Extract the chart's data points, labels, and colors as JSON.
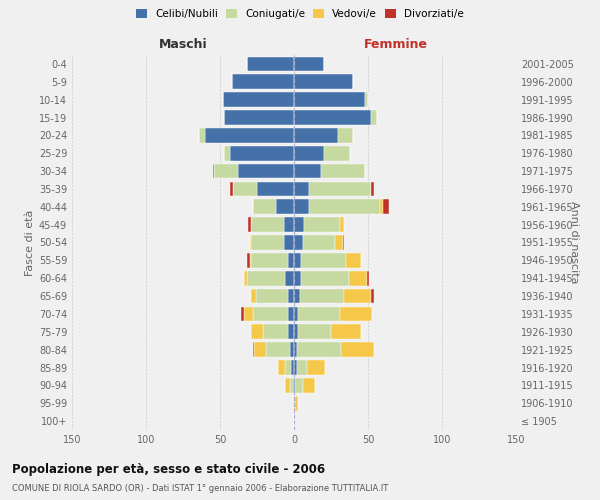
{
  "age_groups": [
    "100+",
    "95-99",
    "90-94",
    "85-89",
    "80-84",
    "75-79",
    "70-74",
    "65-69",
    "60-64",
    "55-59",
    "50-54",
    "45-49",
    "40-44",
    "35-39",
    "30-34",
    "25-29",
    "20-24",
    "15-19",
    "10-14",
    "5-9",
    "0-4"
  ],
  "year_labels": [
    "≤ 1905",
    "1906-1910",
    "1911-1915",
    "1916-1920",
    "1921-1925",
    "1926-1930",
    "1931-1935",
    "1936-1940",
    "1941-1945",
    "1946-1950",
    "1951-1955",
    "1956-1960",
    "1961-1965",
    "1966-1970",
    "1971-1975",
    "1976-1980",
    "1981-1985",
    "1986-1990",
    "1991-1995",
    "1996-2000",
    "2001-2005"
  ],
  "maschi": {
    "celibi": [
      0,
      0,
      1,
      2,
      3,
      4,
      4,
      4,
      6,
      4,
      7,
      7,
      12,
      25,
      38,
      43,
      60,
      47,
      48,
      42,
      32
    ],
    "coniugati": [
      0,
      0,
      2,
      4,
      16,
      17,
      24,
      22,
      26,
      25,
      22,
      22,
      16,
      16,
      16,
      4,
      4,
      0,
      0,
      0,
      0
    ],
    "vedovi": [
      0,
      1,
      3,
      5,
      8,
      8,
      6,
      3,
      2,
      1,
      1,
      0,
      0,
      0,
      0,
      0,
      0,
      0,
      0,
      0,
      0
    ],
    "divorziati": [
      0,
      0,
      0,
      0,
      1,
      0,
      2,
      0,
      0,
      2,
      0,
      2,
      0,
      2,
      1,
      0,
      0,
      0,
      0,
      0,
      0
    ]
  },
  "femmine": {
    "nubili": [
      0,
      0,
      1,
      2,
      2,
      3,
      3,
      4,
      5,
      5,
      6,
      7,
      10,
      10,
      18,
      20,
      30,
      52,
      48,
      40,
      20
    ],
    "coniugate": [
      0,
      1,
      5,
      7,
      30,
      22,
      28,
      30,
      32,
      30,
      22,
      24,
      48,
      42,
      30,
      18,
      10,
      4,
      2,
      0,
      0
    ],
    "vedove": [
      0,
      2,
      8,
      12,
      22,
      20,
      22,
      18,
      12,
      10,
      5,
      3,
      2,
      0,
      0,
      0,
      0,
      0,
      0,
      0,
      0
    ],
    "divorziate": [
      0,
      0,
      0,
      0,
      0,
      0,
      0,
      2,
      2,
      0,
      1,
      0,
      4,
      2,
      0,
      0,
      0,
      0,
      0,
      0,
      0
    ]
  },
  "colors": {
    "celibi": "#4472a8",
    "coniugati": "#c5d9a0",
    "vedovi": "#f5c84a",
    "divorziati": "#c0312a"
  },
  "xlim": 150,
  "title": "Popolazione per età, sesso e stato civile - 2006",
  "subtitle": "COMUNE DI RIOLA SARDO (OR) - Dati ISTAT 1° gennaio 2006 - Elaborazione TUTTITALIA.IT",
  "ylabel_left": "Fasce di età",
  "ylabel_right": "Anni di nascita",
  "label_maschi": "Maschi",
  "label_femmine": "Femmine",
  "bg_color": "#f0f0f0"
}
